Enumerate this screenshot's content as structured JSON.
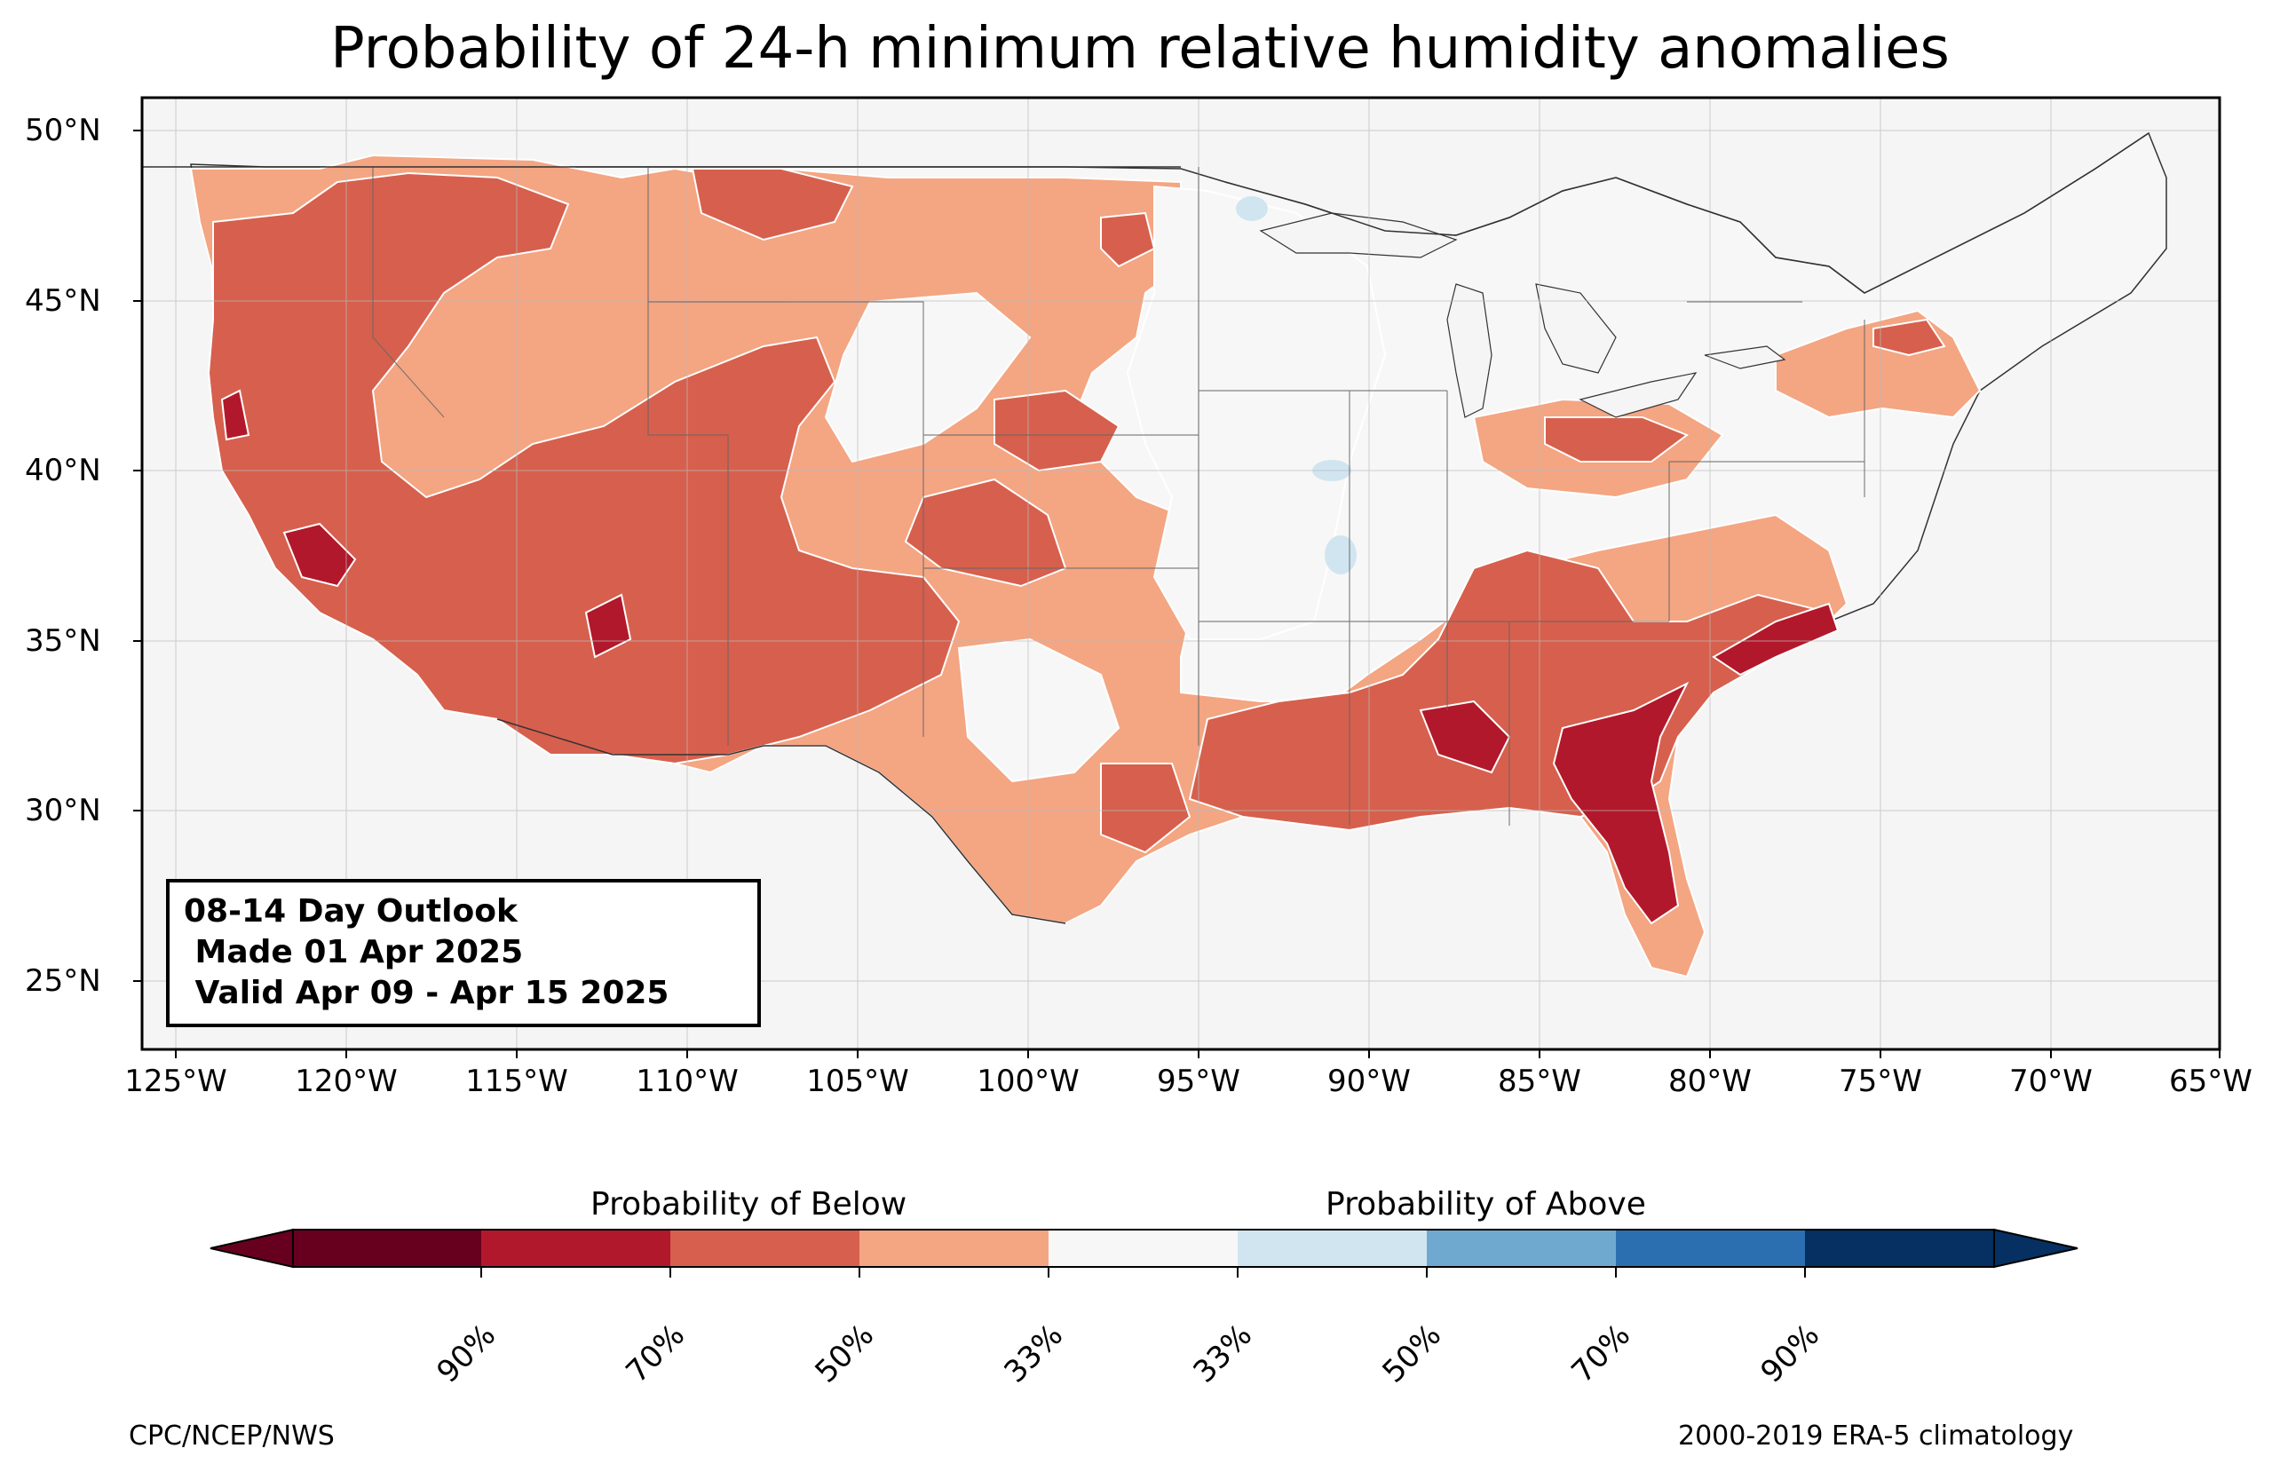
{
  "title": "Probability of 24-h minimum relative humidity anomalies",
  "map": {
    "lon_range": [
      -126,
      -65
    ],
    "lat_range": [
      23,
      51
    ],
    "lat_labels": [
      "25°N",
      "30°N",
      "35°N",
      "40°N",
      "45°N",
      "50°N"
    ],
    "lon_labels": [
      "125°W",
      "120°W",
      "115°W",
      "110°W",
      "105°W",
      "100°W",
      "95°W",
      "90°W",
      "85°W",
      "80°W",
      "75°W",
      "70°W",
      "65°W"
    ],
    "colors": {
      "ocean": "#f5f5f5",
      "below_90": "#67001f",
      "below_70": "#b2182b",
      "below_50": "#d6604d",
      "below_33": "#f4a582",
      "near_normal": "#f7f7f7",
      "above_33": "#d1e5f0",
      "above_50": "#92c5de",
      "above_70": "#4393c3",
      "above_90": "#2166ac",
      "above_max": "#053061"
    }
  },
  "info_box": {
    "line1": "08-14 Day Outlook",
    "line2": " Made 01 Apr 2025",
    "line3": " Valid Apr 09 - Apr 15 2025"
  },
  "colorbar": {
    "below_title": "Probability of Below",
    "above_title": "Probability of Above",
    "ticks": [
      "90%",
      "70%",
      "50%",
      "33%",
      "33%",
      "50%",
      "70%",
      "90%"
    ]
  },
  "footer": {
    "left": "CPC/NCEP/NWS",
    "right": "2000-2019 ERA-5 climatology"
  }
}
